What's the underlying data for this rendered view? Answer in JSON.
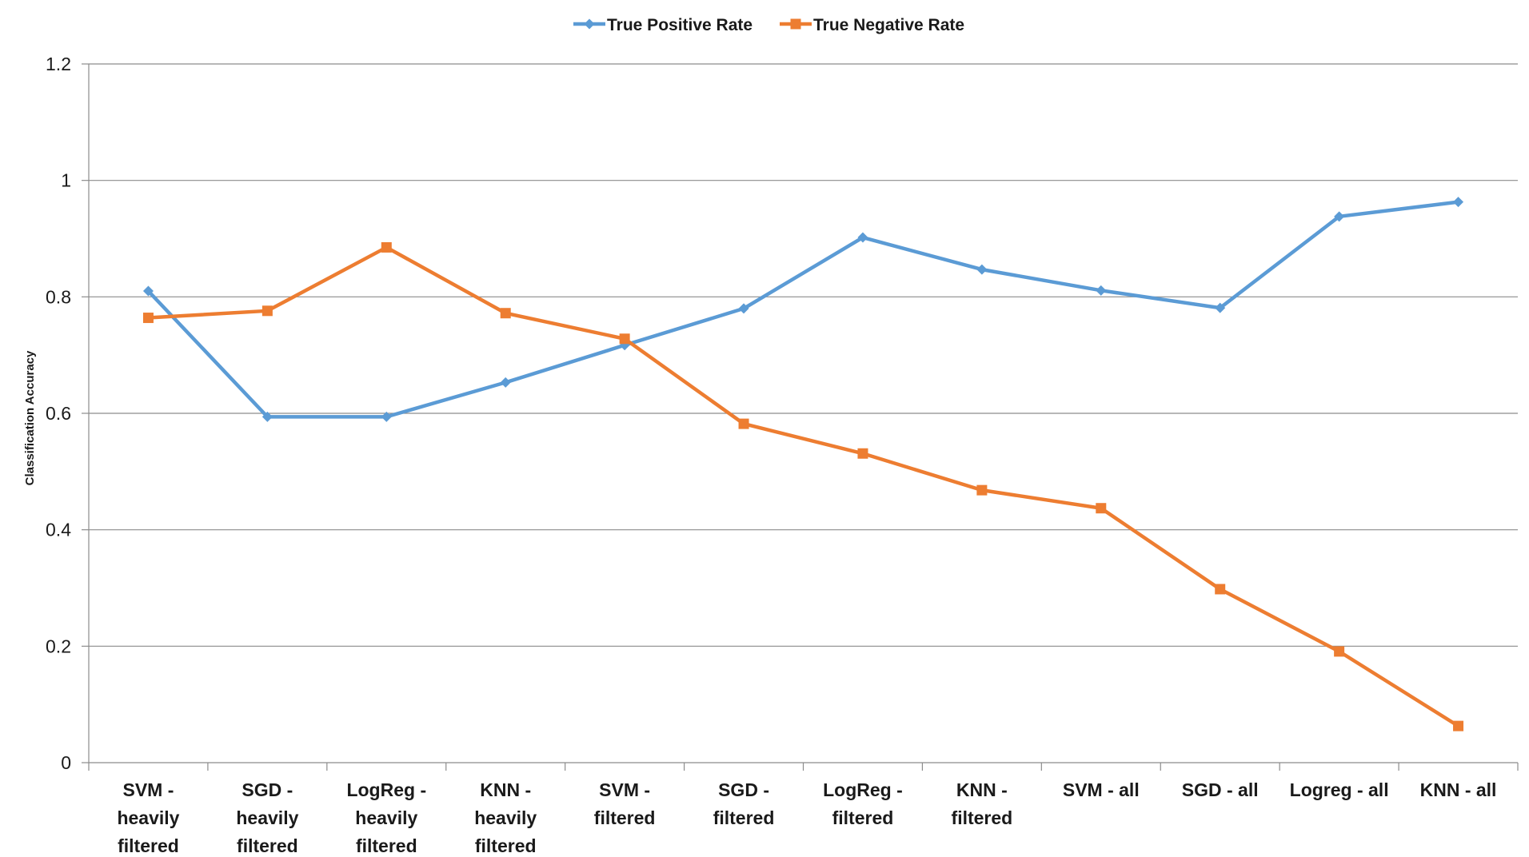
{
  "chart_data": {
    "type": "line",
    "title": "",
    "xlabel": "",
    "ylabel": "Classification Accuracy",
    "ylim": [
      0,
      1.2
    ],
    "yticks": [
      "0",
      "0.2",
      "0.4",
      "0.6",
      "0.8",
      "1",
      "1.2"
    ],
    "grid": true,
    "legend_position": "top",
    "categories": [
      [
        "SVM -",
        "heavily",
        "filtered"
      ],
      [
        "SGD -",
        "heavily",
        "filtered"
      ],
      [
        "LogReg -",
        "heavily",
        "filtered"
      ],
      [
        "KNN -",
        "heavily",
        "filtered"
      ],
      [
        "SVM -",
        "filtered"
      ],
      [
        "SGD -",
        "filtered"
      ],
      [
        "LogReg -",
        "filtered"
      ],
      [
        "KNN -",
        "filtered"
      ],
      [
        "SVM - all"
      ],
      [
        "SGD - all"
      ],
      [
        "Logreg - all"
      ],
      [
        "KNN - all"
      ]
    ],
    "series": [
      {
        "name": "True Positive Rate",
        "color": "#5B9BD5",
        "marker": "diamond",
        "values": [
          0.81,
          0.594,
          0.594,
          0.653,
          0.717,
          0.78,
          0.902,
          0.847,
          0.811,
          0.781,
          0.938,
          0.963
        ]
      },
      {
        "name": "True Negative Rate",
        "color": "#ED7D31",
        "marker": "square",
        "values": [
          0.764,
          0.776,
          0.885,
          0.772,
          0.728,
          0.582,
          0.531,
          0.468,
          0.437,
          0.298,
          0.191,
          0.063
        ]
      }
    ]
  }
}
